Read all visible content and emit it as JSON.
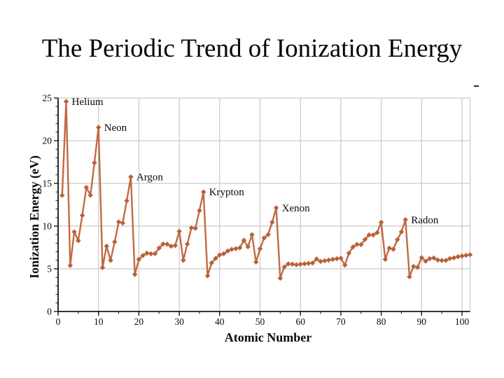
{
  "page": {
    "title": "The Periodic Trend of Ionization Energy"
  },
  "chart_data": {
    "type": "line",
    "title": "",
    "xlabel": "Atomic Number",
    "ylabel": "Ionization Energy (eV)",
    "xlim": [
      0,
      102
    ],
    "ylim": [
      0,
      25
    ],
    "x_major_ticks": [
      0,
      10,
      20,
      30,
      40,
      50,
      60,
      70,
      80,
      90,
      100
    ],
    "y_major_ticks": [
      0,
      5,
      10,
      15,
      20,
      25
    ],
    "x_minor_step": 5,
    "y_minor_step": 1,
    "grid": true,
    "legend_position": "none",
    "x_start": 1,
    "values": [
      13.6,
      24.59,
      5.39,
      9.32,
      8.3,
      11.26,
      14.53,
      13.62,
      17.42,
      21.56,
      5.14,
      7.65,
      5.99,
      8.15,
      10.49,
      10.36,
      12.97,
      15.76,
      4.34,
      6.11,
      6.56,
      6.83,
      6.75,
      6.77,
      7.43,
      7.9,
      7.88,
      7.64,
      7.73,
      9.39,
      6.0,
      7.9,
      9.79,
      9.75,
      11.81,
      14.0,
      4.18,
      5.69,
      6.22,
      6.63,
      6.76,
      7.09,
      7.28,
      7.36,
      7.46,
      8.34,
      7.58,
      8.99,
      5.79,
      7.34,
      8.61,
      9.01,
      10.45,
      12.13,
      3.89,
      5.21,
      5.58,
      5.54,
      5.47,
      5.53,
      5.58,
      5.64,
      5.67,
      6.15,
      5.86,
      5.94,
      6.02,
      6.11,
      6.18,
      6.25,
      5.43,
      6.83,
      7.55,
      7.86,
      7.83,
      8.44,
      8.97,
      8.96,
      9.23,
      10.44,
      6.11,
      7.42,
      7.29,
      8.41,
      9.32,
      10.75,
      4.07,
      5.28,
      5.17,
      6.31,
      5.89,
      6.19,
      6.27,
      6.03,
      5.97,
      5.99,
      6.2,
      6.28,
      6.42,
      6.5,
      6.58,
      6.65
    ],
    "annotations": [
      {
        "label": "Helium",
        "x": 2,
        "y": 24.59
      },
      {
        "label": "Neon",
        "x": 10,
        "y": 21.56
      },
      {
        "label": "Argon",
        "x": 18,
        "y": 15.76
      },
      {
        "label": "Krypton",
        "x": 36,
        "y": 14.0
      },
      {
        "label": "Xenon",
        "x": 54,
        "y": 12.13
      },
      {
        "label": "Radon",
        "x": 86,
        "y": 10.75
      }
    ],
    "colors": {
      "line": "#c16a42",
      "marker": "#b4603a",
      "grid": "#c9c9c9",
      "axis": "#161616",
      "text": "#0a0a0a"
    }
  }
}
